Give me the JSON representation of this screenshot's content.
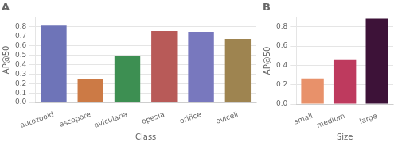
{
  "chart_data": [
    {
      "type": "bar",
      "title": "A",
      "categories": [
        "autozooid",
        "ascopore",
        "avicularia",
        "opesia",
        "orifice",
        "ovicell"
      ],
      "values": [
        0.81,
        0.245,
        0.49,
        0.755,
        0.745,
        0.67
      ],
      "colors": [
        "#6e74b8",
        "#cc7a45",
        "#3d8f52",
        "#b85a58",
        "#7878be",
        "#9e8450"
      ],
      "xlabel": "Class",
      "ylabel": "AP@50",
      "ylim": [
        0,
        0.9
      ],
      "yticks": [
        {
          "value": 0,
          "label": "0.0"
        },
        0.1,
        0.2,
        0.3,
        0.4,
        0.5,
        0.6,
        0.7,
        0.8
      ],
      "grid": true
    },
    {
      "type": "bar",
      "title": "B",
      "categories": [
        "small",
        "medium",
        "large"
      ],
      "values": [
        0.265,
        0.455,
        0.885
      ],
      "colors": [
        "#e8916a",
        "#be3a5e",
        "#3d1238"
      ],
      "xlabel": "Size",
      "ylabel": "AP@50",
      "ylim": [
        0,
        0.9
      ],
      "yticks": [
        {
          "value": 0,
          "label": "0.0"
        },
        0.2,
        0.4,
        0.6,
        0.8
      ],
      "grid": true
    }
  ]
}
